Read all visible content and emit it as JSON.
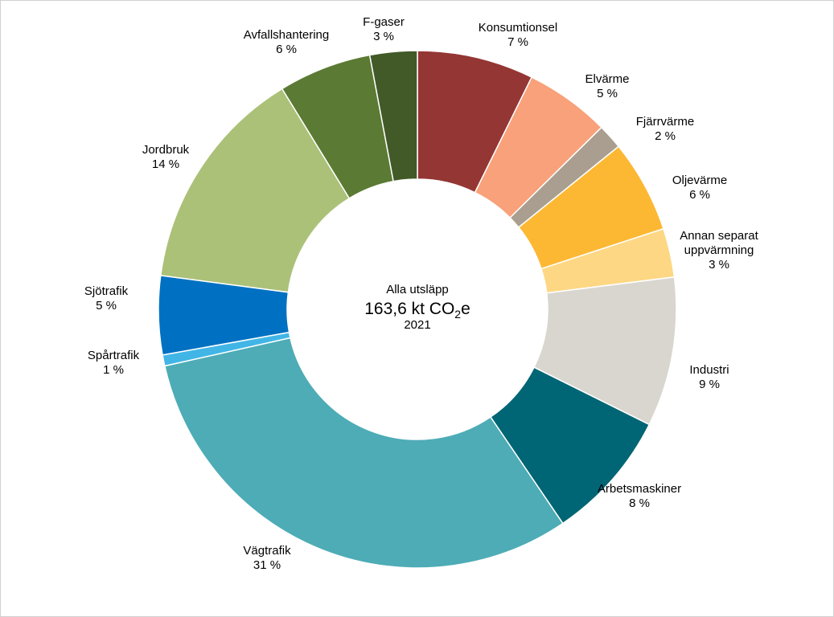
{
  "chart_data": {
    "type": "pie",
    "donut": true,
    "center": {
      "heading": "Alla utsläpp",
      "total_value": "163,6",
      "total_unit_prefix": "kt CO",
      "total_unit_subscript": "2",
      "total_unit_suffix": "e",
      "year": "2021"
    },
    "slices": [
      {
        "name": "Konsumtionsel",
        "pct_label": "7 %",
        "value": 7.4,
        "color": "#943634"
      },
      {
        "name": "Elvärme",
        "pct_label": "5 %",
        "value": 5.4,
        "color": "#F8A17A"
      },
      {
        "name": "Fjärrvärme",
        "pct_label": "2 %",
        "value": 1.6,
        "color": "#A99E8F"
      },
      {
        "name": "Oljevärme",
        "pct_label": "6 %",
        "value": 5.9,
        "color": "#FDB833"
      },
      {
        "name": "Annan separat uppvärmning",
        "name_lines": [
          "Annan separat",
          "uppvärmning"
        ],
        "pct_label": "3 %",
        "value": 3.1,
        "color": "#FDD784"
      },
      {
        "name": "Industri",
        "pct_label": "9 %",
        "value": 9.5,
        "color": "#D9D6CF"
      },
      {
        "name": "Arbetsmaskiner",
        "pct_label": "8 %",
        "value": 8.3,
        "color": "#006574"
      },
      {
        "name": "Vägtrafik",
        "pct_label": "31 %",
        "value": 31.5,
        "color": "#4DACB6"
      },
      {
        "name": "Spårtrafik",
        "pct_label": "1 %",
        "value": 0.7,
        "color": "#41B6E6"
      },
      {
        "name": "Sjötrafik",
        "pct_label": "5 %",
        "value": 5.0,
        "color": "#0071C2"
      },
      {
        "name": "Jordbruk",
        "pct_label": "14 %",
        "value": 14.4,
        "color": "#ABC178"
      },
      {
        "name": "Avfallshantering",
        "pct_label": "6 %",
        "value": 5.9,
        "color": "#5B7A33"
      },
      {
        "name": "F-gaser",
        "pct_label": "3 %",
        "value": 3.0,
        "color": "#425A28"
      }
    ]
  }
}
